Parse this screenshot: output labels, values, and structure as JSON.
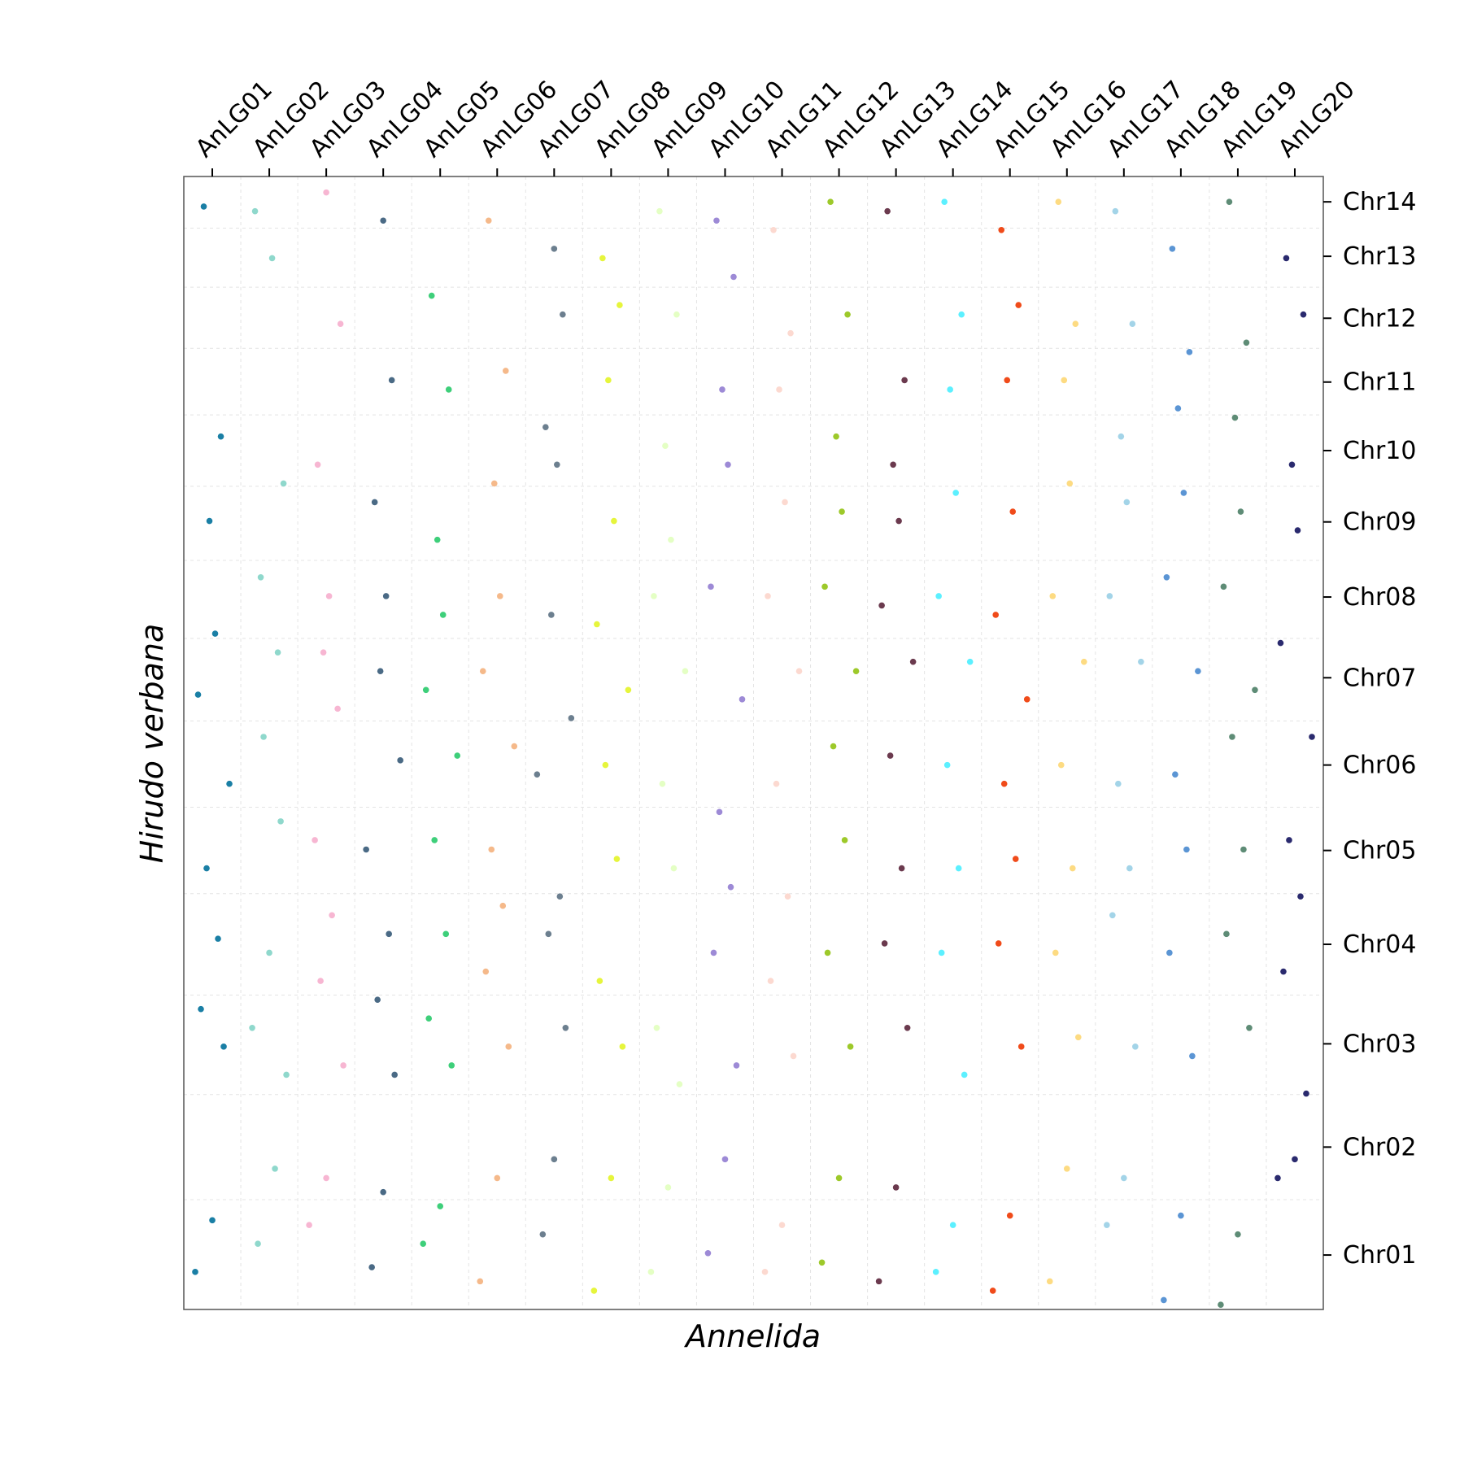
{
  "chart_data": {
    "type": "scatter",
    "x_label": "Annelida",
    "y_label": "Hirudo verbana",
    "xlim": [
      0,
      20
    ],
    "ylim": [
      0,
      1207
    ],
    "x_axis_side": "top",
    "y_axis_side": "right",
    "xticks": [
      {
        "value": 0.5,
        "label": "AnLG01"
      },
      {
        "value": 1.5,
        "label": "AnLG02"
      },
      {
        "value": 2.5,
        "label": "AnLG03"
      },
      {
        "value": 3.5,
        "label": "AnLG04"
      },
      {
        "value": 4.5,
        "label": "AnLG05"
      },
      {
        "value": 5.5,
        "label": "AnLG06"
      },
      {
        "value": 6.5,
        "label": "AnLG07"
      },
      {
        "value": 7.5,
        "label": "AnLG08"
      },
      {
        "value": 8.5,
        "label": "AnLG09"
      },
      {
        "value": 9.5,
        "label": "AnLG10"
      },
      {
        "value": 10.5,
        "label": "AnLG11"
      },
      {
        "value": 11.5,
        "label": "AnLG12"
      },
      {
        "value": 12.5,
        "label": "AnLG13"
      },
      {
        "value": 13.5,
        "label": "AnLG14"
      },
      {
        "value": 14.5,
        "label": "AnLG15"
      },
      {
        "value": 15.5,
        "label": "AnLG16"
      },
      {
        "value": 16.5,
        "label": "AnLG17"
      },
      {
        "value": 17.5,
        "label": "AnLG18"
      },
      {
        "value": 18.5,
        "label": "AnLG19"
      },
      {
        "value": 19.5,
        "label": "AnLG20"
      }
    ],
    "yticks": [
      {
        "value": 58,
        "label": "Chr01"
      },
      {
        "value": 173,
        "label": "Chr02"
      },
      {
        "value": 283,
        "label": "Chr03"
      },
      {
        "value": 389,
        "label": "Chr04"
      },
      {
        "value": 489,
        "label": "Chr05"
      },
      {
        "value": 580,
        "label": "Chr06"
      },
      {
        "value": 673,
        "label": "Chr07"
      },
      {
        "value": 759,
        "label": "Chr08"
      },
      {
        "value": 839,
        "label": "Chr09"
      },
      {
        "value": 915,
        "label": "Chr10"
      },
      {
        "value": 988,
        "label": "Chr11"
      },
      {
        "value": 1056,
        "label": "Chr12"
      },
      {
        "value": 1122,
        "label": "Chr13"
      },
      {
        "value": 1180,
        "label": "Chr14"
      }
    ],
    "xgrid": [
      1,
      2,
      3,
      4,
      5,
      6,
      7,
      8,
      9,
      10,
      11,
      12,
      13,
      14,
      15,
      16,
      17,
      18,
      19
    ],
    "ygrid": [
      117,
      229,
      335,
      443,
      535,
      627,
      715,
      798,
      877,
      953,
      1024,
      1089,
      1152
    ],
    "grid": true,
    "series": [
      {
        "color": "#1a7fa5",
        "x": [
          0.2,
          0.5,
          0.7,
          0.3,
          0.6,
          0.4,
          0.8,
          0.25,
          0.55,
          0.45,
          0.65,
          0.35
        ],
        "values": [
          40,
          95,
          280,
          320,
          395,
          470,
          560,
          655,
          720,
          840,
          930,
          1175
        ]
      },
      {
        "color": "#8fd8cc",
        "x": [
          1.3,
          1.6,
          1.8,
          1.2,
          1.5,
          1.7,
          1.4,
          1.65,
          1.35,
          1.75,
          1.55,
          1.25
        ],
        "values": [
          70,
          150,
          250,
          300,
          380,
          520,
          610,
          700,
          780,
          880,
          1120,
          1170
        ]
      },
      {
        "color": "#f7b6d2",
        "x": [
          2.2,
          2.5,
          2.8,
          2.4,
          2.6,
          2.3,
          2.7,
          2.45,
          2.55,
          2.35,
          2.75,
          2.5
        ],
        "values": [
          90,
          140,
          260,
          350,
          420,
          500,
          640,
          700,
          760,
          900,
          1050,
          1190
        ]
      },
      {
        "color": "#4a6a85",
        "x": [
          3.3,
          3.5,
          3.7,
          3.4,
          3.6,
          3.2,
          3.8,
          3.45,
          3.55,
          3.35,
          3.65,
          3.5
        ],
        "values": [
          45,
          125,
          250,
          330,
          400,
          490,
          585,
          680,
          760,
          860,
          990,
          1160
        ]
      },
      {
        "color": "#3ecf7a",
        "x": [
          4.2,
          4.5,
          4.7,
          4.3,
          4.6,
          4.4,
          4.8,
          4.25,
          4.55,
          4.45,
          4.65,
          4.35
        ],
        "values": [
          70,
          110,
          260,
          310,
          400,
          500,
          590,
          660,
          740,
          820,
          980,
          1080
        ]
      },
      {
        "color": "#f5b98a",
        "x": [
          5.2,
          5.5,
          5.7,
          5.3,
          5.6,
          5.4,
          5.8,
          5.25,
          5.55,
          5.45,
          5.65,
          5.35
        ],
        "values": [
          30,
          140,
          280,
          360,
          430,
          490,
          600,
          680,
          760,
          880,
          1000,
          1160
        ]
      },
      {
        "color": "#6c7f8f",
        "x": [
          6.3,
          6.5,
          6.7,
          6.4,
          6.6,
          6.2,
          6.8,
          6.45,
          6.55,
          6.35,
          6.65,
          6.5
        ],
        "values": [
          80,
          160,
          300,
          400,
          440,
          570,
          630,
          740,
          900,
          940,
          1060,
          1130
        ]
      },
      {
        "color": "#e6f53c",
        "x": [
          7.2,
          7.5,
          7.7,
          7.3,
          7.6,
          7.4,
          7.8,
          7.25,
          7.55,
          7.45,
          7.65,
          7.35
        ],
        "values": [
          20,
          140,
          280,
          350,
          480,
          580,
          660,
          730,
          840,
          990,
          1070,
          1120
        ]
      },
      {
        "color": "#e4ffc4",
        "x": [
          8.2,
          8.5,
          8.7,
          8.3,
          8.6,
          8.4,
          8.8,
          8.25,
          8.55,
          8.45,
          8.65,
          8.35
        ],
        "values": [
          40,
          130,
          240,
          300,
          470,
          560,
          680,
          760,
          820,
          920,
          1060,
          1170
        ]
      },
      {
        "color": "#9d8ad6",
        "x": [
          9.2,
          9.5,
          9.7,
          9.3,
          9.6,
          9.4,
          9.8,
          9.25,
          9.55,
          9.45,
          9.65,
          9.35
        ],
        "values": [
          60,
          160,
          260,
          380,
          450,
          530,
          650,
          770,
          900,
          980,
          1100,
          1160
        ]
      },
      {
        "color": "#fcd9d0",
        "x": [
          10.2,
          10.5,
          10.7,
          10.3,
          10.6,
          10.4,
          10.8,
          10.25,
          10.55,
          10.45,
          10.65,
          10.35
        ],
        "values": [
          40,
          90,
          270,
          350,
          440,
          560,
          680,
          760,
          860,
          980,
          1040,
          1150
        ]
      },
      {
        "color": "#9dc92a",
        "x": [
          11.2,
          11.5,
          11.7,
          11.3,
          11.6,
          11.4,
          11.8,
          11.25,
          11.55,
          11.45,
          11.65,
          11.35
        ],
        "values": [
          50,
          140,
          280,
          380,
          500,
          600,
          680,
          770,
          850,
          930,
          1060,
          1180
        ]
      },
      {
        "color": "#6b3a4e",
        "x": [
          12.2,
          12.5,
          12.7,
          12.3,
          12.6,
          12.4,
          12.8,
          12.25,
          12.55,
          12.45,
          12.65,
          12.35
        ],
        "values": [
          30,
          130,
          300,
          390,
          470,
          590,
          690,
          750,
          840,
          900,
          990,
          1170
        ]
      },
      {
        "color": "#5cf0ff",
        "x": [
          13.2,
          13.5,
          13.7,
          13.3,
          13.6,
          13.4,
          13.8,
          13.25,
          13.55,
          13.45,
          13.65,
          13.35
        ],
        "values": [
          40,
          90,
          250,
          380,
          470,
          580,
          690,
          760,
          870,
          980,
          1060,
          1180
        ]
      },
      {
        "color": "#f04b1a",
        "x": [
          14.2,
          14.5,
          14.7,
          14.3,
          14.6,
          14.4,
          14.8,
          14.25,
          14.55,
          14.45,
          14.65,
          14.35
        ],
        "values": [
          20,
          100,
          280,
          390,
          480,
          560,
          650,
          740,
          850,
          990,
          1070,
          1150
        ]
      },
      {
        "color": "#fddb82",
        "x": [
          15.2,
          15.5,
          15.7,
          15.3,
          15.6,
          15.4,
          15.8,
          15.25,
          15.55,
          15.45,
          15.65,
          15.35
        ],
        "values": [
          30,
          150,
          290,
          380,
          470,
          580,
          690,
          760,
          880,
          990,
          1050,
          1180
        ]
      },
      {
        "color": "#a3d4e8",
        "x": [
          16.2,
          16.5,
          16.7,
          16.3,
          16.6,
          16.4,
          16.8,
          16.25,
          16.55,
          16.45,
          16.65,
          16.35
        ],
        "values": [
          90,
          140,
          280,
          420,
          470,
          560,
          690,
          760,
          860,
          930,
          1050,
          1170
        ]
      },
      {
        "color": "#5b95d4",
        "x": [
          17.2,
          17.5,
          17.7,
          17.3,
          17.6,
          17.4,
          17.8,
          17.25,
          17.55,
          17.45,
          17.65,
          17.35
        ],
        "values": [
          10,
          100,
          270,
          380,
          490,
          570,
          680,
          780,
          870,
          960,
          1020,
          1130
        ]
      },
      {
        "color": "#5e8c76",
        "x": [
          18.2,
          18.5,
          18.7,
          18.3,
          18.6,
          18.4,
          18.8,
          18.25,
          18.55,
          18.45,
          18.65,
          18.35
        ],
        "values": [
          5,
          80,
          300,
          400,
          490,
          610,
          660,
          770,
          850,
          950,
          1030,
          1180
        ]
      },
      {
        "color": "#2a2a6e",
        "x": [
          19.2,
          19.5,
          19.7,
          19.3,
          19.6,
          19.4,
          19.8,
          19.25,
          19.55,
          19.45,
          19.65,
          19.35
        ],
        "values": [
          140,
          160,
          230,
          360,
          440,
          500,
          610,
          710,
          830,
          900,
          1060,
          1120
        ]
      }
    ]
  }
}
